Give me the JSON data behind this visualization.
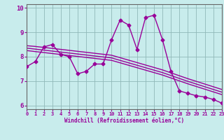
{
  "xlabel": "Windchill (Refroidissement éolien,°C)",
  "background_color": "#c8ecec",
  "line_color": "#990099",
  "spine_color": "#666666",
  "x_data": [
    0,
    1,
    2,
    3,
    4,
    5,
    6,
    7,
    8,
    9,
    10,
    11,
    12,
    13,
    14,
    15,
    16,
    17,
    18,
    19,
    20,
    21,
    22,
    23
  ],
  "main_y": [
    7.6,
    7.8,
    8.4,
    8.5,
    8.1,
    8.0,
    7.3,
    7.4,
    7.7,
    7.7,
    8.7,
    9.5,
    9.3,
    8.3,
    9.6,
    9.7,
    8.7,
    7.4,
    6.6,
    6.5,
    6.4,
    6.35,
    6.25,
    6.1
  ],
  "line1_y": [
    8.45,
    8.42,
    8.38,
    8.34,
    8.3,
    8.26,
    8.22,
    8.18,
    8.14,
    8.1,
    8.06,
    7.96,
    7.86,
    7.76,
    7.66,
    7.56,
    7.46,
    7.34,
    7.22,
    7.1,
    6.99,
    6.88,
    6.77,
    6.66
  ],
  "line2_y": [
    8.35,
    8.31,
    8.27,
    8.23,
    8.19,
    8.15,
    8.11,
    8.07,
    8.03,
    7.99,
    7.95,
    7.85,
    7.75,
    7.65,
    7.55,
    7.45,
    7.35,
    7.23,
    7.11,
    6.99,
    6.88,
    6.77,
    6.66,
    6.55
  ],
  "line3_y": [
    8.25,
    8.21,
    8.17,
    8.13,
    8.09,
    8.05,
    8.01,
    7.97,
    7.93,
    7.89,
    7.85,
    7.75,
    7.65,
    7.55,
    7.45,
    7.35,
    7.25,
    7.13,
    7.01,
    6.89,
    6.78,
    6.67,
    6.56,
    6.45
  ],
  "xlim": [
    0,
    23
  ],
  "ylim": [
    5.85,
    10.15
  ],
  "yticks": [
    6,
    7,
    8,
    9,
    10
  ],
  "xticks": [
    0,
    1,
    2,
    3,
    4,
    5,
    6,
    7,
    8,
    9,
    10,
    11,
    12,
    13,
    14,
    15,
    16,
    17,
    18,
    19,
    20,
    21,
    22,
    23
  ],
  "grid_color": "#90b8b8",
  "marker": "D",
  "markersize": 2.5,
  "linewidth": 1.0
}
